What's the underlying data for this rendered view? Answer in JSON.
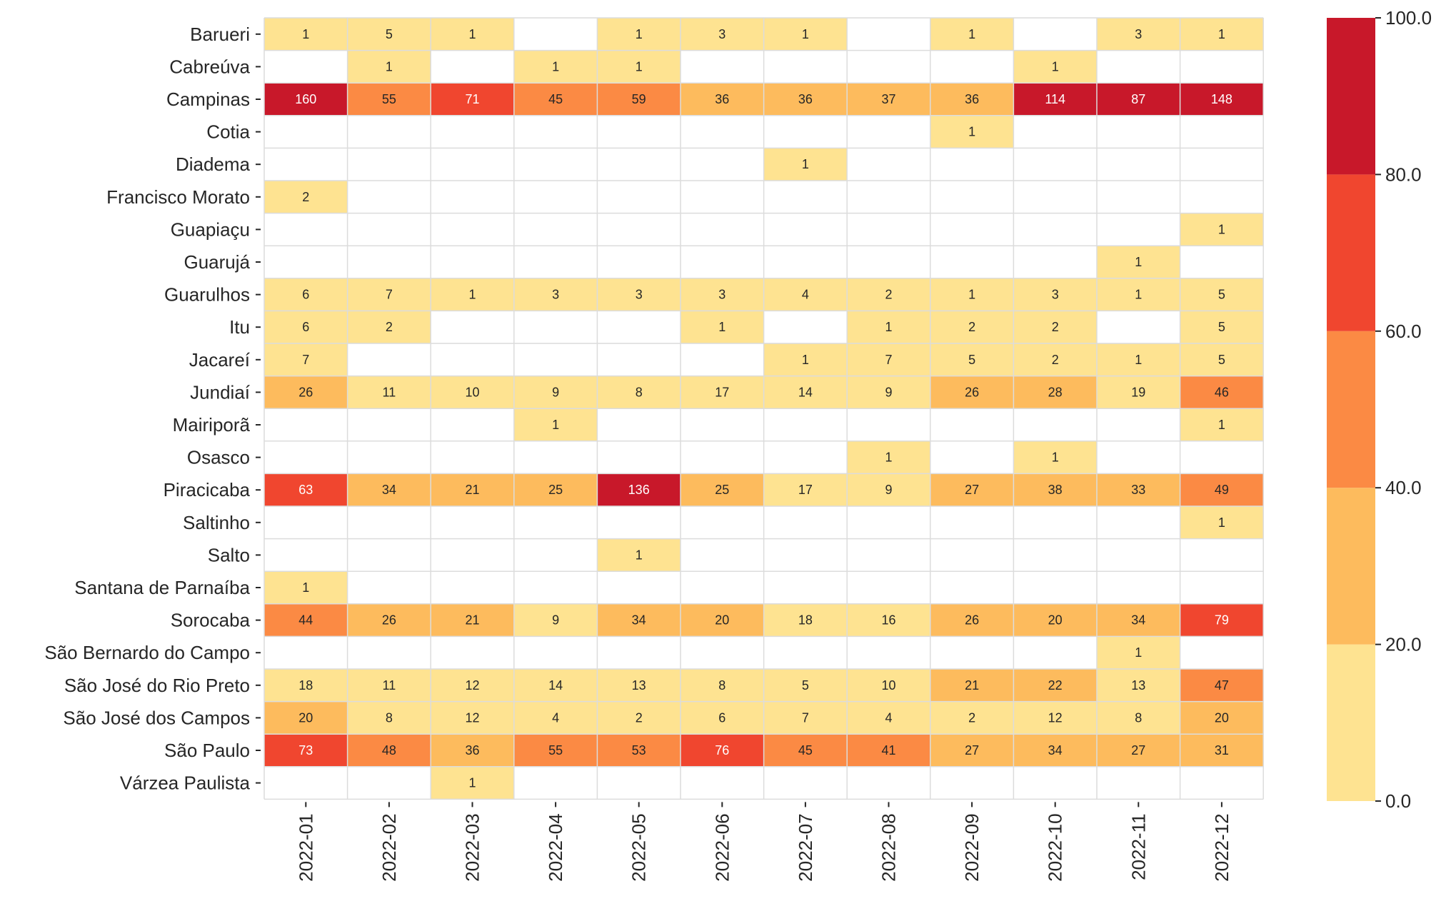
{
  "chart_data": {
    "type": "heatmap",
    "title": "",
    "xlabel": "",
    "ylabel": "",
    "x": [
      "2022-01",
      "2022-02",
      "2022-03",
      "2022-04",
      "2022-05",
      "2022-06",
      "2022-07",
      "2022-08",
      "2022-09",
      "2022-10",
      "2022-11",
      "2022-12"
    ],
    "y": [
      "Barueri",
      "Cabreúva",
      "Campinas",
      "Cotia",
      "Diadema",
      "Francisco Morato",
      "Guapiaçu",
      "Guarujá",
      "Guarulhos",
      "Itu",
      "Jacareí",
      "Jundiaí",
      "Mairiporã",
      "Osasco",
      "Piracicaba",
      "Saltinho",
      "Salto",
      "Santana de Parnaíba",
      "Sorocaba",
      "São Bernardo do Campo",
      "São José do Rio Preto",
      "São José dos Campos",
      "São Paulo",
      "Várzea Paulista"
    ],
    "values": [
      [
        1,
        5,
        1,
        null,
        1,
        3,
        1,
        null,
        1,
        null,
        3,
        1
      ],
      [
        null,
        1,
        null,
        1,
        1,
        null,
        null,
        null,
        null,
        1,
        null,
        null
      ],
      [
        160,
        55,
        71,
        45,
        59,
        36,
        36,
        37,
        36,
        114,
        87,
        148
      ],
      [
        null,
        null,
        null,
        null,
        null,
        null,
        null,
        null,
        1,
        null,
        null,
        null
      ],
      [
        null,
        null,
        null,
        null,
        null,
        null,
        1,
        null,
        null,
        null,
        null,
        null
      ],
      [
        2,
        null,
        null,
        null,
        null,
        null,
        null,
        null,
        null,
        null,
        null,
        null
      ],
      [
        null,
        null,
        null,
        null,
        null,
        null,
        null,
        null,
        null,
        null,
        null,
        1
      ],
      [
        null,
        null,
        null,
        null,
        null,
        null,
        null,
        null,
        null,
        null,
        1,
        null
      ],
      [
        6,
        7,
        1,
        3,
        3,
        3,
        4,
        2,
        1,
        3,
        1,
        5
      ],
      [
        6,
        2,
        null,
        null,
        null,
        1,
        null,
        1,
        2,
        2,
        null,
        5
      ],
      [
        7,
        null,
        null,
        null,
        null,
        null,
        1,
        7,
        5,
        2,
        1,
        5
      ],
      [
        26,
        11,
        10,
        9,
        8,
        17,
        14,
        9,
        26,
        28,
        19,
        46
      ],
      [
        null,
        null,
        null,
        1,
        null,
        null,
        null,
        null,
        null,
        null,
        null,
        1
      ],
      [
        null,
        null,
        null,
        null,
        null,
        null,
        null,
        1,
        null,
        1,
        null,
        null
      ],
      [
        63,
        34,
        21,
        25,
        136,
        25,
        17,
        9,
        27,
        38,
        33,
        49
      ],
      [
        null,
        null,
        null,
        null,
        null,
        null,
        null,
        null,
        null,
        null,
        null,
        1
      ],
      [
        null,
        null,
        null,
        null,
        1,
        null,
        null,
        null,
        null,
        null,
        null,
        null
      ],
      [
        1,
        null,
        null,
        null,
        null,
        null,
        null,
        null,
        null,
        null,
        null,
        null
      ],
      [
        44,
        26,
        21,
        9,
        34,
        20,
        18,
        16,
        26,
        20,
        34,
        79
      ],
      [
        null,
        null,
        null,
        null,
        null,
        null,
        null,
        null,
        null,
        null,
        1,
        null
      ],
      [
        18,
        11,
        12,
        14,
        13,
        8,
        5,
        10,
        21,
        22,
        13,
        47
      ],
      [
        20,
        8,
        12,
        4,
        2,
        6,
        7,
        4,
        2,
        12,
        8,
        20
      ],
      [
        73,
        48,
        36,
        55,
        53,
        76,
        45,
        41,
        27,
        34,
        27,
        31
      ],
      [
        null,
        null,
        1,
        null,
        null,
        null,
        null,
        null,
        null,
        null,
        null,
        null
      ]
    ],
    "colorbar": {
      "min": 0,
      "max": 100,
      "ticks": [
        "0.0",
        "20.0",
        "40.0",
        "60.0",
        "80.0",
        "100.0"
      ],
      "bins": [
        {
          "from": 0,
          "to": 20,
          "color": "#fee391"
        },
        {
          "from": 20,
          "to": 40,
          "color": "#fdbb5d"
        },
        {
          "from": 40,
          "to": 60,
          "color": "#fb8a44"
        },
        {
          "from": 60,
          "to": 80,
          "color": "#f0462f"
        },
        {
          "from": 80,
          "to": 100,
          "color": "#c8182a"
        }
      ]
    },
    "grid": true,
    "legend": "colorbar-right"
  }
}
